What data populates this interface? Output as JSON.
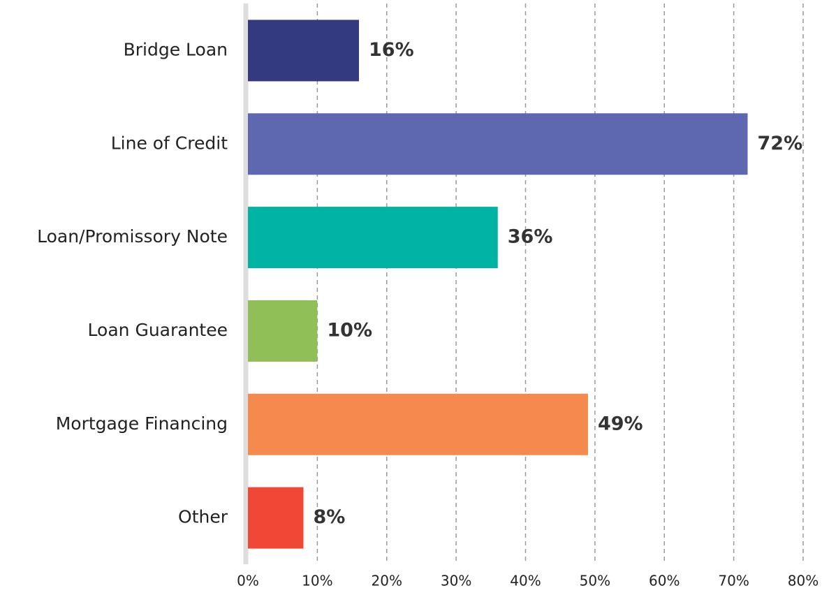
{
  "chart_data": {
    "type": "bar",
    "orientation": "horizontal",
    "categories": [
      "Bridge Loan",
      "Line of Credit",
      "Loan/Promissory Note",
      "Loan Guarantee",
      "Mortgage Financing",
      "Other"
    ],
    "values": [
      16,
      72,
      36,
      10,
      49,
      8
    ],
    "value_labels": [
      "16%",
      "72%",
      "36%",
      "10%",
      "49%",
      "8%"
    ],
    "colors": [
      "#343a80",
      "#5e68b0",
      "#00b3a4",
      "#8fbf56",
      "#f48a4e",
      "#ef4836"
    ],
    "xlim": [
      0,
      80
    ],
    "xticks": [
      {
        "value": 0,
        "label": "0%"
      },
      {
        "value": 10,
        "label": "10%"
      },
      {
        "value": 20,
        "label": "20%"
      },
      {
        "value": 30,
        "label": "30%"
      },
      {
        "value": 40,
        "label": "40%"
      },
      {
        "value": 50,
        "label": "50%"
      },
      {
        "value": 60,
        "label": "60%"
      },
      {
        "value": 70,
        "label": "70%"
      },
      {
        "value": 80,
        "label": "80%"
      }
    ],
    "grid": true
  }
}
